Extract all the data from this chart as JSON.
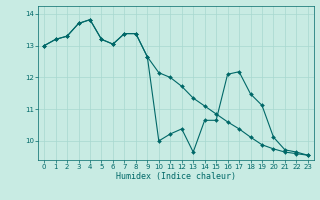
{
  "xlabel": "Humidex (Indice chaleur)",
  "background_color": "#c8ebe3",
  "grid_color": "#a8d8d0",
  "line_color": "#006868",
  "xlim": [
    -0.5,
    23.5
  ],
  "ylim": [
    9.4,
    14.25
  ],
  "yticks": [
    10,
    11,
    12,
    13,
    14
  ],
  "xticks": [
    0,
    1,
    2,
    3,
    4,
    5,
    6,
    7,
    8,
    9,
    10,
    11,
    12,
    13,
    14,
    15,
    16,
    17,
    18,
    19,
    20,
    21,
    22,
    23
  ],
  "line1_x": [
    0,
    1,
    2,
    3,
    4,
    5,
    6,
    7,
    8,
    9,
    10,
    11,
    12,
    13,
    14,
    15,
    16,
    17,
    18,
    19,
    20,
    21,
    22,
    23
  ],
  "line1_y": [
    13.0,
    13.2,
    13.3,
    13.7,
    13.82,
    13.2,
    13.05,
    13.38,
    13.38,
    12.65,
    12.15,
    12.0,
    11.72,
    11.35,
    11.1,
    10.85,
    10.6,
    10.38,
    10.12,
    9.88,
    9.75,
    9.65,
    9.6,
    9.55
  ],
  "line2_x": [
    0,
    1,
    2,
    3,
    4,
    5,
    6,
    7,
    8,
    9,
    10,
    11,
    12,
    13,
    14,
    15,
    16,
    17,
    18,
    19,
    20,
    21,
    22,
    23
  ],
  "line2_y": [
    13.0,
    13.2,
    13.3,
    13.7,
    13.82,
    13.2,
    13.05,
    13.38,
    13.38,
    12.65,
    10.0,
    10.22,
    10.38,
    9.65,
    10.65,
    10.65,
    12.1,
    12.18,
    11.48,
    11.12,
    10.12,
    9.72,
    9.65,
    9.55
  ]
}
